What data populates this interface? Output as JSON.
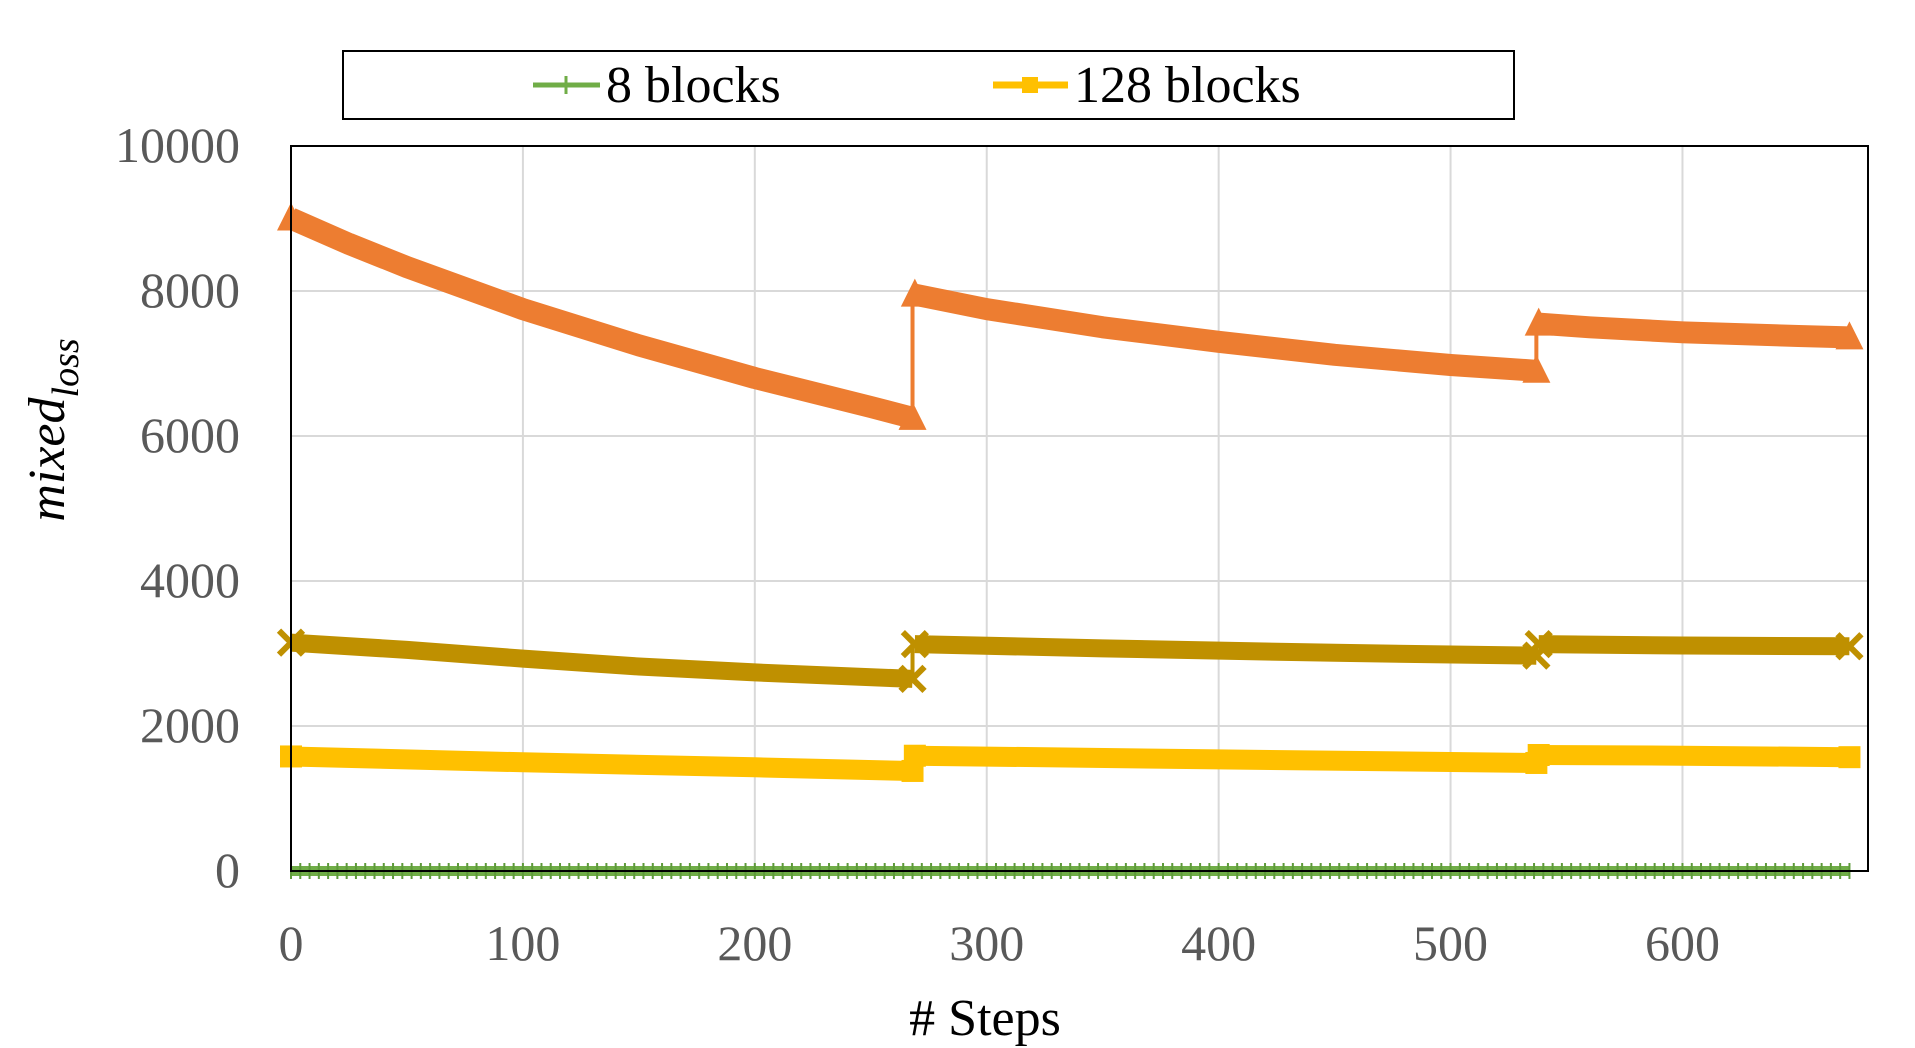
{
  "chart_data": {
    "type": "line",
    "xlabel": "# Steps",
    "ylabel": {
      "base": "mixed",
      "subscript": "loss"
    },
    "xlim": [
      0,
      680
    ],
    "ylim": [
      0,
      10000
    ],
    "xticks": [
      "0",
      "100",
      "200",
      "300",
      "400",
      "500",
      "600"
    ],
    "yticks": [
      "0",
      "2000",
      "4000",
      "6000",
      "8000",
      "10000"
    ],
    "grid": true,
    "legend_position": "top",
    "legend": [
      {
        "label": "8 blocks",
        "color": "#70AD47"
      },
      {
        "label": "128 blocks",
        "color": "#FFC000"
      }
    ],
    "series": [
      {
        "name": "8 blocks",
        "color": "#70AD47",
        "marker": "plus",
        "segments": [
          {
            "x": [
              0,
              672
            ],
            "y": [
              0,
              0
            ]
          }
        ]
      },
      {
        "color": "#ED7D31",
        "marker": "triangle",
        "segments": [
          {
            "x": [
              0,
              25,
              50,
              100,
              150,
              200,
              250,
              268
            ],
            "y": [
              9000,
              8650,
              8330,
              7750,
              7250,
              6800,
              6400,
              6250
            ]
          },
          {
            "x": [
              269,
              300,
              350,
              400,
              450,
              500,
              537
            ],
            "y": [
              7950,
              7750,
              7500,
              7300,
              7120,
              6980,
              6900
            ]
          },
          {
            "x": [
              538,
              560,
              600,
              650,
              672
            ],
            "y": [
              7550,
              7500,
              7430,
              7380,
              7360
            ]
          }
        ],
        "jumps": [
          [
            268,
            269
          ],
          [
            537,
            538
          ]
        ]
      },
      {
        "color": "#BF9000",
        "marker": "x",
        "segments": [
          {
            "x": [
              0,
              50,
              100,
              150,
              200,
              268
            ],
            "y": [
              3150,
              3050,
              2930,
              2820,
              2740,
              2650
            ]
          },
          {
            "x": [
              269,
              350,
              450,
              537
            ],
            "y": [
              3130,
              3070,
              3010,
              2970
            ]
          },
          {
            "x": [
              538,
              600,
              672
            ],
            "y": [
              3130,
              3110,
              3100
            ]
          }
        ],
        "jumps": [
          [
            268,
            269
          ],
          [
            537,
            538
          ]
        ]
      },
      {
        "name": "128 blocks",
        "color": "#FFC000",
        "marker": "square",
        "segments": [
          {
            "x": [
              0,
              100,
              200,
              268
            ],
            "y": [
              1580,
              1500,
              1430,
              1380
            ]
          },
          {
            "x": [
              269,
              400,
              537
            ],
            "y": [
              1590,
              1540,
              1490
            ]
          },
          {
            "x": [
              538,
              600,
              672
            ],
            "y": [
              1600,
              1590,
              1570
            ]
          }
        ],
        "jumps": [
          [
            268,
            269
          ],
          [
            537,
            538
          ]
        ]
      }
    ]
  }
}
